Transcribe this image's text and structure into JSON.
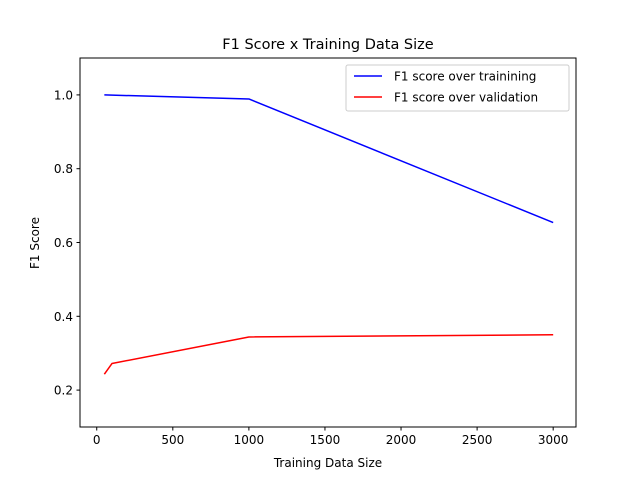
{
  "chart_data": {
    "type": "line",
    "title": "F1 Score x Training Data Size",
    "xlabel": "Training Data Size",
    "ylabel": "F1 Score",
    "xlim": [
      -110,
      3150
    ],
    "ylim": [
      0.1,
      1.1
    ],
    "xticks": [
      0,
      500,
      1000,
      1500,
      2000,
      2500,
      3000
    ],
    "xtick_labels": [
      "0",
      "500",
      "1000",
      "1500",
      "2000",
      "2500",
      "3000"
    ],
    "yticks": [
      0.2,
      0.4,
      0.6,
      0.8,
      1.0
    ],
    "ytick_labels": [
      "0.2",
      "0.4",
      "0.6",
      "0.8",
      "1.0"
    ],
    "grid": false,
    "legend_position": "top-right",
    "series": [
      {
        "name": "F1 score over trainining",
        "color": "#0000ff",
        "x": [
          50,
          1000,
          3000
        ],
        "y": [
          1.0,
          0.989,
          0.654
        ]
      },
      {
        "name": "F1 score over validation",
        "color": "#ff0000",
        "x": [
          50,
          100,
          1000,
          3000
        ],
        "y": [
          0.243,
          0.272,
          0.344,
          0.35
        ]
      }
    ]
  }
}
